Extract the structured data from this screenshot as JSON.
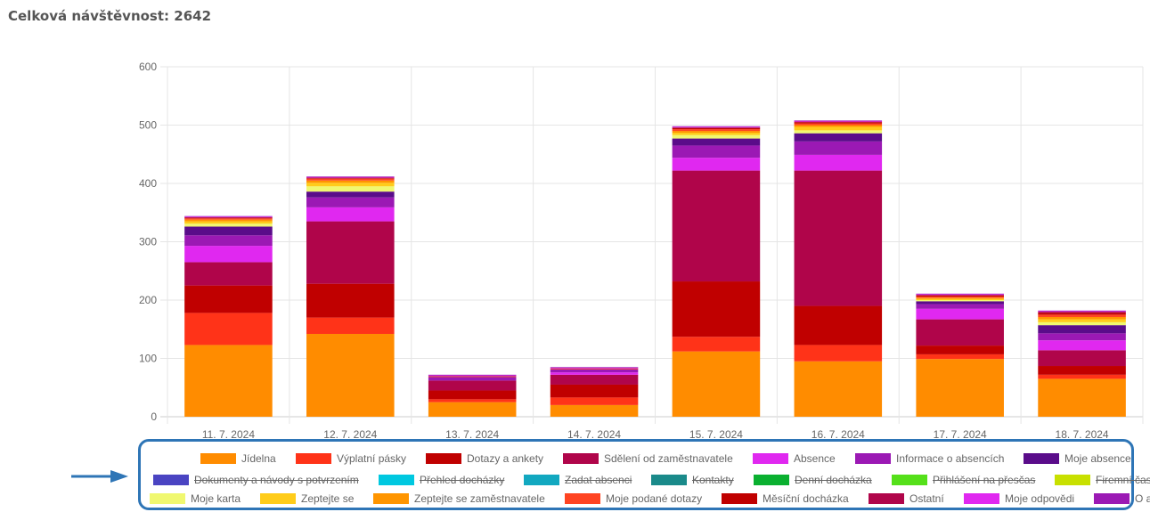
{
  "header": {
    "title": "Celková návštěvnost: 2642"
  },
  "chart_data": {
    "type": "bar",
    "stacked": true,
    "title": "",
    "xlabel": "",
    "ylabel": "",
    "ylim": [
      0,
      600
    ],
    "yticks": [
      0,
      100,
      200,
      300,
      400,
      500,
      600
    ],
    "grid": true,
    "legend_position": "bottom",
    "categories": [
      "11. 7. 2024",
      "12. 7. 2024",
      "13. 7. 2024",
      "14. 7. 2024",
      "15. 7. 2024",
      "16. 7. 2024",
      "17. 7. 2024",
      "18. 7. 2024"
    ],
    "series": [
      {
        "name": "Jídelna",
        "color": "#ff8c00",
        "hidden": false,
        "values": [
          123,
          142,
          25,
          20,
          112,
          95,
          99,
          65
        ]
      },
      {
        "name": "Výplatní pásky",
        "color": "#ff3318",
        "hidden": false,
        "values": [
          55,
          28,
          5,
          13,
          25,
          28,
          8,
          7
        ]
      },
      {
        "name": "Dotazy a ankety",
        "color": "#c00000",
        "hidden": false,
        "values": [
          47,
          58,
          15,
          22,
          95,
          67,
          15,
          15
        ]
      },
      {
        "name": "Sdělení od zaměstnavatele",
        "color": "#b0054a",
        "hidden": false,
        "values": [
          40,
          107,
          17,
          17,
          190,
          232,
          45,
          27
        ]
      },
      {
        "name": "Absence",
        "color": "#e028f0",
        "hidden": false,
        "values": [
          28,
          24,
          0,
          4,
          22,
          27,
          18,
          17
        ]
      },
      {
        "name": "Informace o absencích",
        "color": "#9b19b4",
        "hidden": false,
        "values": [
          18,
          17,
          6,
          5,
          21,
          23,
          8,
          12
        ]
      },
      {
        "name": "Moje absence",
        "color": "#5a0c8a",
        "hidden": false,
        "values": [
          15,
          10,
          0,
          0,
          12,
          14,
          5,
          14
        ]
      },
      {
        "name": "Dokumenty a návody s potvrzením",
        "color": "#4a44c2",
        "hidden": true,
        "values": [
          0,
          0,
          0,
          0,
          0,
          0,
          0,
          0
        ]
      },
      {
        "name": "Přehled docházky",
        "color": "#00c8e0",
        "hidden": true,
        "values": [
          0,
          0,
          0,
          0,
          0,
          0,
          0,
          0
        ]
      },
      {
        "name": "Zadat absenci",
        "color": "#12a8c0",
        "hidden": true,
        "values": [
          0,
          0,
          0,
          0,
          0,
          0,
          0,
          0
        ]
      },
      {
        "name": "Kontakty",
        "color": "#1a8a8a",
        "hidden": true,
        "values": [
          0,
          0,
          0,
          0,
          0,
          0,
          0,
          0
        ]
      },
      {
        "name": "Denní docházka",
        "color": "#0ab030",
        "hidden": true,
        "values": [
          0,
          0,
          0,
          0,
          0,
          0,
          0,
          0
        ]
      },
      {
        "name": "Přihlášení na přesčas",
        "color": "#55e01a",
        "hidden": true,
        "values": [
          0,
          0,
          0,
          0,
          0,
          0,
          0,
          0
        ]
      },
      {
        "name": "Firemní časopis",
        "color": "#c8e000",
        "hidden": true,
        "values": [
          0,
          0,
          0,
          0,
          0,
          0,
          0,
          0
        ]
      },
      {
        "name": "Moje karta",
        "color": "#f0f870",
        "hidden": false,
        "values": [
          5,
          9,
          0,
          0,
          6,
          5,
          2,
          5
        ]
      },
      {
        "name": "Zeptejte se",
        "color": "#ffcc1a",
        "hidden": false,
        "values": [
          4,
          6,
          0,
          0,
          4,
          6,
          2,
          5
        ]
      },
      {
        "name": "Zeptejte se zaměstnavatele",
        "color": "#ff9500",
        "hidden": false,
        "values": [
          3,
          4,
          0,
          0,
          3,
          3,
          2,
          4
        ]
      },
      {
        "name": "Moje podané dotazy",
        "color": "#ff4422",
        "hidden": false,
        "values": [
          2,
          3,
          1,
          1,
          3,
          3,
          2,
          4
        ]
      },
      {
        "name": "Měsíční docházka",
        "color": "#c00000",
        "hidden": false,
        "values": [
          1,
          1,
          0,
          0,
          2,
          2,
          2,
          3
        ]
      },
      {
        "name": "Ostatní",
        "color": "#b0054a",
        "hidden": false,
        "values": [
          1,
          1,
          1,
          1,
          1,
          1,
          1,
          2
        ]
      },
      {
        "name": "Moje odpovědi",
        "color": "#e028f0",
        "hidden": false,
        "values": [
          1,
          1,
          1,
          1,
          1,
          1,
          1,
          1
        ]
      },
      {
        "name": "O aplikaci",
        "color": "#9b19b4",
        "hidden": false,
        "values": [
          1,
          1,
          1,
          1,
          1,
          1,
          1,
          1
        ]
      }
    ]
  }
}
